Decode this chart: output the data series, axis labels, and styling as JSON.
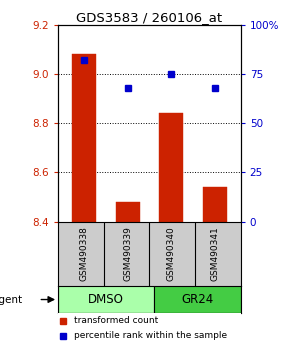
{
  "title": "GDS3583 / 260106_at",
  "samples": [
    "GSM490338",
    "GSM490339",
    "GSM490340",
    "GSM490341"
  ],
  "bar_values": [
    9.08,
    8.48,
    8.84,
    8.54
  ],
  "percentile_values": [
    82,
    68,
    75,
    68
  ],
  "ylim_left": [
    8.4,
    9.2
  ],
  "ylim_right": [
    0,
    100
  ],
  "yticks_left": [
    8.4,
    8.6,
    8.8,
    9.0,
    9.2
  ],
  "yticks_right": [
    0,
    25,
    50,
    75,
    100
  ],
  "ytick_labels_right": [
    "0",
    "25",
    "50",
    "75",
    "100%"
  ],
  "bar_color": "#cc2200",
  "dot_color": "#0000cc",
  "groups": [
    {
      "label": "DMSO",
      "indices": [
        0,
        1
      ],
      "color": "#aaffaa"
    },
    {
      "label": "GR24",
      "indices": [
        2,
        3
      ],
      "color": "#44cc44"
    }
  ],
  "agent_label": "agent",
  "legend_bar_label": "transformed count",
  "legend_dot_label": "percentile rank within the sample",
  "sample_box_color": "#cccccc",
  "background_color": "#ffffff",
  "x_positions": [
    1,
    2,
    3,
    4
  ],
  "bar_width": 0.55,
  "bar_base": 8.4,
  "grid_yticks": [
    8.6,
    8.8,
    9.0
  ]
}
